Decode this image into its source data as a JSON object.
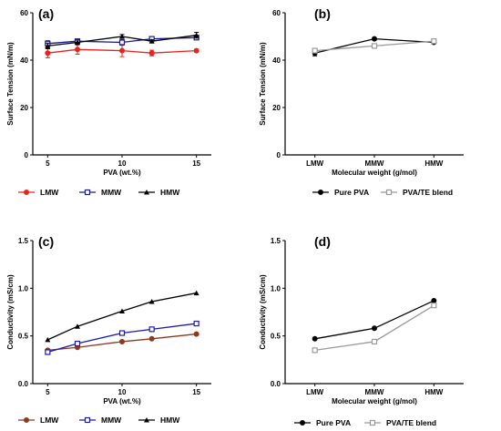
{
  "chart_data": [
    {
      "panel": "(a)",
      "type": "line",
      "xlabel": "PVA (wt.%)",
      "ylabel": "Surface Tension (mN/m)",
      "xticks": [
        "5",
        "10",
        "15"
      ],
      "yticks": [
        "0",
        "20",
        "40",
        "60"
      ],
      "xlim": [
        4,
        16
      ],
      "ylim": [
        0,
        60
      ],
      "errorbars": true,
      "x": [
        5,
        7,
        10,
        12,
        15
      ],
      "series": [
        {
          "name": "LMW",
          "color": "#e8231e",
          "marker": "circle-filled",
          "values": [
            43.0,
            44.5,
            44.0,
            43.0,
            44.0
          ],
          "err": [
            2.0,
            2.0,
            2.5,
            1.2,
            0.6
          ]
        },
        {
          "name": "MMW",
          "color": "#1a1a8c",
          "marker": "square-open",
          "values": [
            47.0,
            48.0,
            47.5,
            49.0,
            49.5
          ],
          "err": [
            1.2,
            0.8,
            1.2,
            0.6,
            0.8
          ]
        },
        {
          "name": "HMW",
          "color": "#000000",
          "marker": "triangle-filled",
          "values": [
            46.0,
            47.5,
            50.0,
            48.0,
            50.5
          ],
          "err": [
            1.2,
            1.0,
            0.8,
            0.6,
            1.2
          ]
        }
      ]
    },
    {
      "panel": "(b)",
      "type": "line",
      "xlabel": "Molecular weight (g/mol)",
      "ylabel": "Surface Tension (mN/m)",
      "categories": [
        "LMW",
        "MMW",
        "HMW"
      ],
      "yticks": [
        "0",
        "20",
        "40",
        "60"
      ],
      "ylim": [
        0,
        60
      ],
      "series": [
        {
          "name": "Pure PVA",
          "color": "#000000",
          "marker": "circle-filled",
          "values": [
            43.0,
            49.0,
            47.5
          ],
          "err": [
            1.2,
            0.5,
            0.5
          ]
        },
        {
          "name": "PVA/TE blend",
          "color": "#999999",
          "marker": "square-open",
          "values": [
            44.0,
            46.0,
            48.0
          ],
          "err": [
            0.5,
            0.5,
            0.5
          ]
        }
      ]
    },
    {
      "panel": "(c)",
      "type": "line",
      "xlabel": "PVA (wt.%)",
      "ylabel": "Conductivity (mS/cm)",
      "xticks": [
        "5",
        "10",
        "15"
      ],
      "yticks": [
        "0.0",
        "0.5",
        "1.0",
        "1.5"
      ],
      "xlim": [
        4,
        16
      ],
      "ylim": [
        0,
        1.5
      ],
      "x": [
        5,
        7,
        10,
        12,
        15
      ],
      "series": [
        {
          "name": "LMW",
          "color": "#8b3a1c",
          "marker": "circle-filled",
          "values": [
            0.35,
            0.38,
            0.44,
            0.47,
            0.52
          ]
        },
        {
          "name": "MMW",
          "color": "#1a1ab0",
          "marker": "square-open",
          "values": [
            0.33,
            0.42,
            0.53,
            0.57,
            0.63
          ]
        },
        {
          "name": "HMW",
          "color": "#000000",
          "marker": "triangle-filled",
          "values": [
            0.46,
            0.6,
            0.76,
            0.86,
            0.95
          ]
        }
      ]
    },
    {
      "panel": "(d)",
      "type": "line",
      "xlabel": "Molecular weight (g/mol)",
      "ylabel": "Conductivity (mS/cm)",
      "categories": [
        "LMW",
        "MMW",
        "HMW"
      ],
      "yticks": [
        "0.0",
        "0.5",
        "1.0",
        "1.5"
      ],
      "ylim": [
        0,
        1.5
      ],
      "series": [
        {
          "name": "Pure PVA",
          "color": "#000000",
          "marker": "circle-filled",
          "values": [
            0.47,
            0.58,
            0.87
          ]
        },
        {
          "name": "PVA/TE blend",
          "color": "#999999",
          "marker": "square-open",
          "values": [
            0.35,
            0.44,
            0.82
          ]
        }
      ]
    }
  ]
}
